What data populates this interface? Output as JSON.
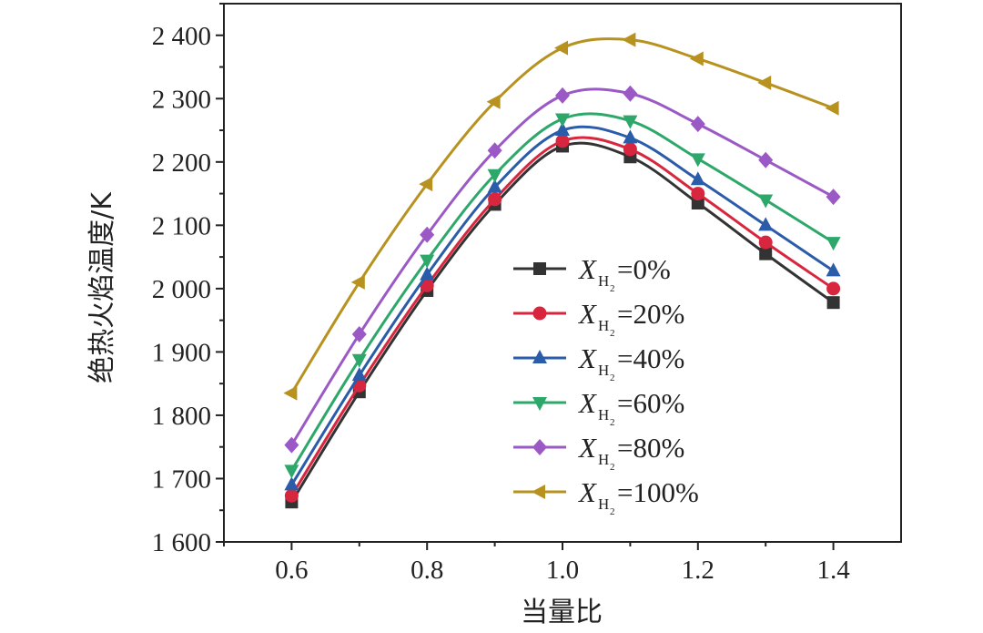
{
  "chart_data": {
    "type": "line",
    "xlabel": "当量比",
    "ylabel": "绝热火焰温度/K",
    "xlim": [
      0.5,
      1.5
    ],
    "ylim": [
      1600,
      2450
    ],
    "x_ticks": [
      "0.6",
      "0.8",
      "1.0",
      "1.2",
      "1.4"
    ],
    "y_ticks": [
      "1 600",
      "1 700",
      "1 800",
      "1 900",
      "2 000",
      "2 100",
      "2 200",
      "2 300",
      "2 400"
    ],
    "x": [
      0.6,
      0.7,
      0.8,
      0.9,
      1.0,
      1.1,
      1.2,
      1.3,
      1.4
    ],
    "legend_position": "center-right",
    "series": [
      {
        "name": "0%",
        "legend_var": "X",
        "legend_sub": "H",
        "legend_subsub": "2",
        "legend_suffix": "=0%",
        "color": "#333333",
        "marker": "square",
        "values": [
          1663,
          1837,
          1997,
          2133,
          2225,
          2208,
          2135,
          2055,
          1978
        ]
      },
      {
        "name": "20%",
        "legend_var": "X",
        "legend_sub": "H",
        "legend_subsub": "2",
        "legend_suffix": "=20%",
        "color": "#d7263d",
        "marker": "circle",
        "values": [
          1673,
          1847,
          2005,
          2141,
          2233,
          2220,
          2150,
          2073,
          2000
        ]
      },
      {
        "name": "40%",
        "legend_var": "X",
        "legend_sub": "H",
        "legend_subsub": "2",
        "legend_suffix": "=40%",
        "color": "#2a5caa",
        "marker": "triangle-up",
        "values": [
          1690,
          1863,
          2022,
          2160,
          2250,
          2238,
          2172,
          2100,
          2028
        ]
      },
      {
        "name": "60%",
        "legend_var": "X",
        "legend_sub": "H",
        "legend_subsub": "2",
        "legend_suffix": "=60%",
        "color": "#2ea86a",
        "marker": "triangle-down",
        "values": [
          1713,
          1888,
          2045,
          2180,
          2268,
          2265,
          2205,
          2140,
          2073
        ]
      },
      {
        "name": "80%",
        "legend_var": "X",
        "legend_sub": "H",
        "legend_subsub": "2",
        "legend_suffix": "=80%",
        "color": "#9b59c6",
        "marker": "diamond",
        "values": [
          1753,
          1928,
          2085,
          2218,
          2305,
          2308,
          2260,
          2203,
          2145
        ]
      },
      {
        "name": "100%",
        "legend_var": "X",
        "legend_sub": "H",
        "legend_subsub": "2",
        "legend_suffix": "=100%",
        "color": "#b8921f",
        "marker": "triangle-left",
        "values": [
          1835,
          2010,
          2165,
          2295,
          2380,
          2393,
          2363,
          2325,
          2285
        ]
      }
    ]
  }
}
